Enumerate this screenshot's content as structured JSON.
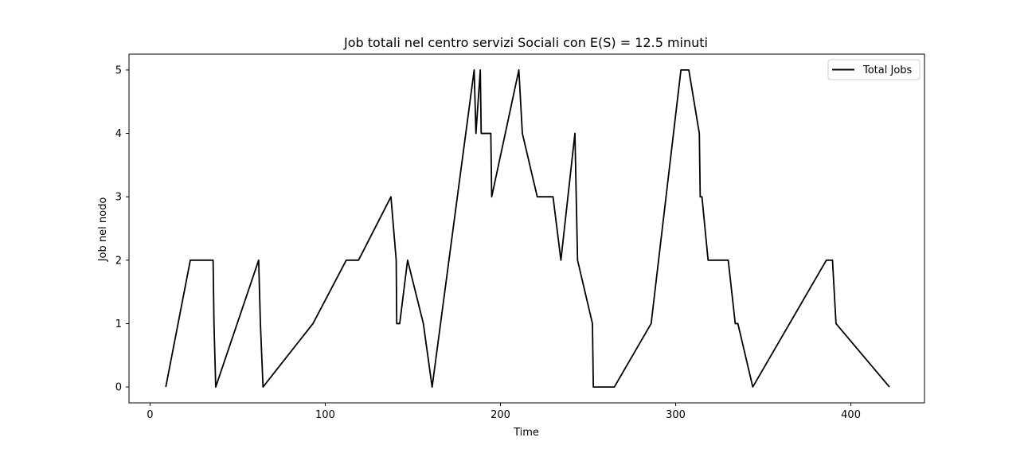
{
  "chart_data": {
    "type": "line",
    "title": "Job totali nel centro servizi Sociali con E(S) = 12.5 minuti",
    "xlabel": "Time",
    "ylabel": "Job nel nodo",
    "xlim": [
      -12,
      442
    ],
    "ylim": [
      -0.25,
      5.25
    ],
    "xticks": [
      0,
      100,
      200,
      300,
      400
    ],
    "yticks": [
      0,
      1,
      2,
      3,
      4,
      5
    ],
    "grid": false,
    "legend": "top-right",
    "series": [
      {
        "name": "Total Jobs",
        "color": "#000000",
        "points": [
          [
            9,
            0
          ],
          [
            23,
            2
          ],
          [
            36,
            2
          ],
          [
            36.5,
            1
          ],
          [
            37.5,
            0
          ],
          [
            62,
            2
          ],
          [
            63,
            1
          ],
          [
            64.5,
            0
          ],
          [
            93,
            1
          ],
          [
            112,
            2
          ],
          [
            119,
            2
          ],
          [
            137.5,
            3
          ],
          [
            140.5,
            2
          ],
          [
            140.8,
            1
          ],
          [
            142.5,
            1
          ],
          [
            147,
            2
          ],
          [
            156,
            1
          ],
          [
            161,
            0
          ],
          [
            185,
            5
          ],
          [
            186,
            4
          ],
          [
            188.5,
            5
          ],
          [
            189,
            4
          ],
          [
            194.5,
            4
          ],
          [
            195,
            3
          ],
          [
            210.5,
            5
          ],
          [
            212.5,
            4
          ],
          [
            221,
            3
          ],
          [
            230,
            3
          ],
          [
            234.5,
            2
          ],
          [
            242.5,
            4
          ],
          [
            244,
            2
          ],
          [
            252.5,
            1
          ],
          [
            253,
            0
          ],
          [
            265,
            0
          ],
          [
            286,
            1
          ],
          [
            303,
            5
          ],
          [
            307.5,
            5
          ],
          [
            313.5,
            4
          ],
          [
            314,
            3
          ],
          [
            315,
            3
          ],
          [
            318.5,
            2
          ],
          [
            330,
            2
          ],
          [
            334,
            1
          ],
          [
            335.5,
            1
          ],
          [
            344,
            0
          ],
          [
            386,
            2
          ],
          [
            389.5,
            2
          ],
          [
            391.5,
            1
          ],
          [
            422,
            0
          ]
        ]
      }
    ]
  }
}
